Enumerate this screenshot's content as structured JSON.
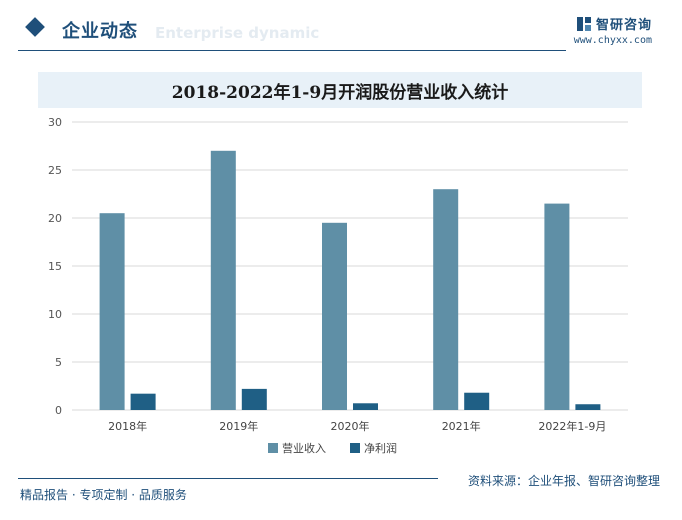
{
  "header": {
    "section_title": "企业动态",
    "section_watermark": "Enterprise dynamic",
    "brand_name": "智研咨询",
    "brand_url": "www.chyxx.com"
  },
  "chart_data": {
    "type": "bar",
    "title": "2018-2022年1-9月开润股份营业收入统计",
    "categories": [
      "2018年",
      "2019年",
      "2020年",
      "2021年",
      "2022年1-9月"
    ],
    "series": [
      {
        "name": "营业收入",
        "values": [
          20.5,
          27.0,
          19.5,
          23.0,
          21.5
        ],
        "color": "#5f8fa6"
      },
      {
        "name": "净利润",
        "values": [
          1.7,
          2.2,
          0.7,
          1.8,
          0.6
        ],
        "color": "#1f5f85"
      }
    ],
    "ylim": [
      0,
      30
    ],
    "yticks": [
      0,
      5,
      10,
      15,
      20,
      25,
      30
    ],
    "grid": true,
    "legend_position": "bottom",
    "xlabel": "",
    "ylabel": ""
  },
  "footer": {
    "left_text": "精品报告 · 专项定制 · 品质服务",
    "source": "资料来源：企业年报、智研咨询整理"
  },
  "watermark_text": "智研咨询"
}
